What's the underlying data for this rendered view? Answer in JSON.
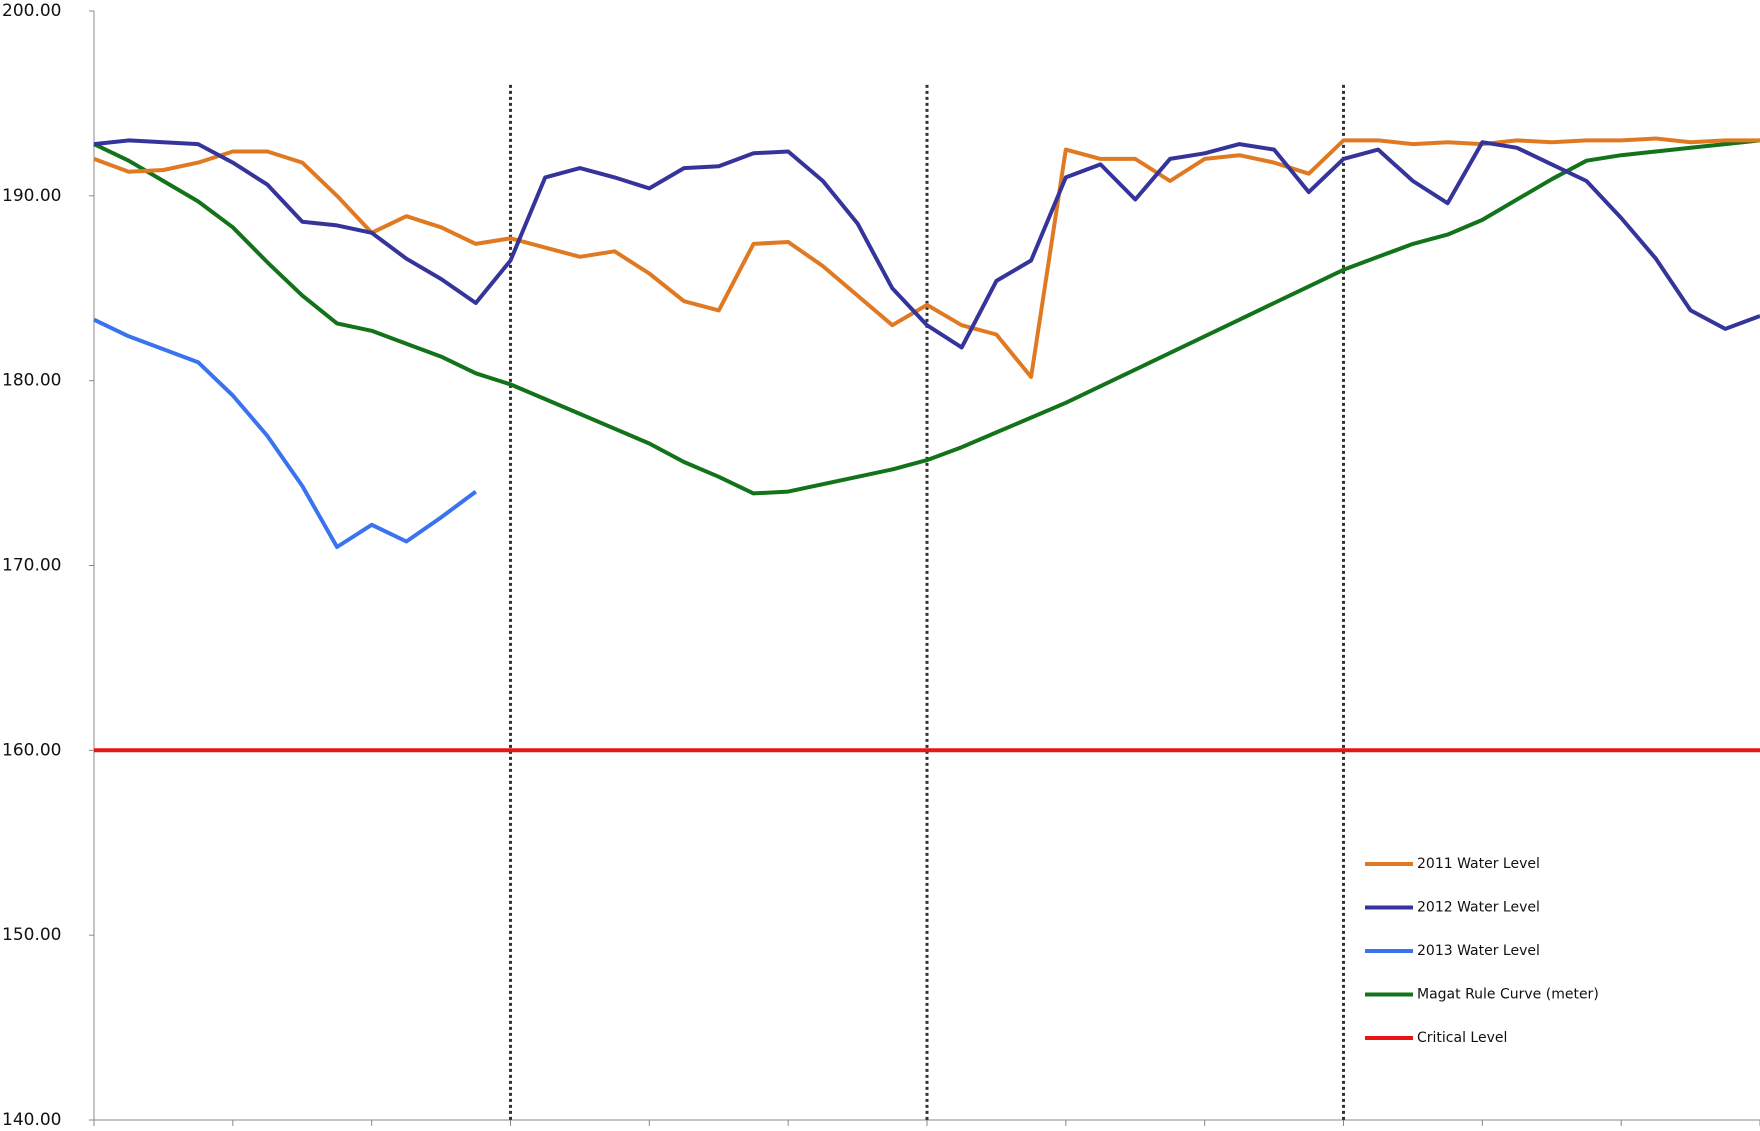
{
  "chart_data": {
    "type": "line",
    "x": [
      0,
      0.25,
      0.5,
      0.75,
      1,
      1.25,
      1.5,
      1.75,
      2,
      2.25,
      2.5,
      2.75,
      3,
      3.25,
      3.5,
      3.75,
      4,
      4.25,
      4.5,
      4.75,
      5,
      5.25,
      5.5,
      5.75,
      6,
      6.25,
      6.5,
      6.75,
      7,
      7.25,
      7.5,
      7.75,
      8,
      8.25,
      8.5,
      8.75,
      9,
      9.25,
      9.5,
      9.75,
      10,
      10.25,
      10.5,
      10.75,
      11,
      11.25,
      11.5,
      11.75,
      12
    ],
    "xlim": [
      0,
      12
    ],
    "xticks": [
      0,
      1,
      2,
      3,
      4,
      5,
      6,
      7,
      8,
      9,
      10,
      11,
      12
    ],
    "ylim": [
      140,
      200
    ],
    "yticks": [
      {
        "value": 140,
        "label": "140.00"
      },
      {
        "value": 150,
        "label": "150.00"
      },
      {
        "value": 160,
        "label": "160.00"
      },
      {
        "value": 170,
        "label": "170.00"
      },
      {
        "value": 180,
        "label": "180.00"
      },
      {
        "value": 190,
        "label": "190.00"
      },
      {
        "value": 200,
        "label": "200.00"
      }
    ],
    "reference_lines": [
      3,
      6,
      9
    ],
    "legend": "lower right",
    "series": [
      {
        "name": "2011 Water Level",
        "color": "#e07a22",
        "values": [
          192.0,
          191.3,
          191.4,
          191.8,
          192.4,
          192.4,
          191.8,
          190.0,
          188.0,
          188.9,
          188.3,
          187.4,
          187.7,
          187.2,
          186.7,
          187.0,
          185.8,
          184.3,
          183.8,
          187.4,
          187.5,
          186.2,
          184.6,
          183.0,
          184.1,
          183.0,
          182.5,
          180.2,
          192.5,
          192.0,
          192.0,
          190.8,
          192.0,
          192.2,
          191.8,
          191.2,
          193.0,
          193.0,
          192.8,
          192.9,
          192.8,
          193.0,
          192.9,
          193.0,
          193.0,
          193.1,
          192.9,
          193.0,
          193.0
        ]
      },
      {
        "name": "2012 Water Level",
        "color": "#35349a",
        "values": [
          192.8,
          193.0,
          192.9,
          192.8,
          191.8,
          190.6,
          188.6,
          188.4,
          188.0,
          186.6,
          185.5,
          184.2,
          186.5,
          191.0,
          191.5,
          191.0,
          190.4,
          191.5,
          191.6,
          192.3,
          192.4,
          190.8,
          188.5,
          185.0,
          183.0,
          181.8,
          185.4,
          186.5,
          191.0,
          191.7,
          189.8,
          192.0,
          192.3,
          192.8,
          192.5,
          190.2,
          192.0,
          192.5,
          190.8,
          189.6,
          192.9,
          192.6,
          191.7,
          190.8,
          188.8,
          186.6,
          183.8,
          182.8,
          183.5
        ]
      },
      {
        "name": "2013 Water Level",
        "color": "#3a73f0",
        "values": [
          183.3,
          182.4,
          181.7,
          181.0,
          179.2,
          177.0,
          174.3,
          171.0,
          172.2,
          171.3,
          172.6,
          174.0,
          null,
          null,
          null,
          null,
          null,
          null,
          null,
          null,
          null,
          null,
          null,
          null,
          null,
          null,
          null,
          null,
          null,
          null,
          null,
          null,
          null,
          null,
          null,
          null,
          null,
          null,
          null,
          null,
          null,
          null,
          null,
          null,
          null,
          null,
          null,
          null,
          null
        ]
      },
      {
        "name": "Magat Rule Curve (meter)",
        "color": "#13731a",
        "values": [
          192.8,
          191.9,
          190.8,
          189.7,
          188.3,
          186.4,
          184.6,
          183.1,
          182.7,
          182.0,
          181.3,
          180.4,
          179.8,
          179.0,
          178.2,
          177.4,
          176.6,
          175.6,
          174.8,
          173.9,
          174.0,
          174.4,
          174.8,
          175.2,
          175.7,
          176.4,
          177.2,
          178.0,
          178.8,
          179.7,
          180.6,
          181.5,
          182.4,
          183.3,
          184.2,
          185.1,
          186.0,
          186.7,
          187.4,
          187.9,
          188.7,
          189.8,
          190.9,
          191.9,
          192.2,
          192.4,
          192.6,
          192.8,
          193.0
        ]
      },
      {
        "name": "Critical Level",
        "color": "#e81416",
        "values": [
          160,
          160,
          160,
          160,
          160,
          160,
          160,
          160,
          160,
          160,
          160,
          160,
          160,
          160,
          160,
          160,
          160,
          160,
          160,
          160,
          160,
          160,
          160,
          160,
          160,
          160,
          160,
          160,
          160,
          160,
          160,
          160,
          160,
          160,
          160,
          160,
          160,
          160,
          160,
          160,
          160,
          160,
          160,
          160,
          160,
          160,
          160,
          160,
          160
        ]
      }
    ]
  }
}
